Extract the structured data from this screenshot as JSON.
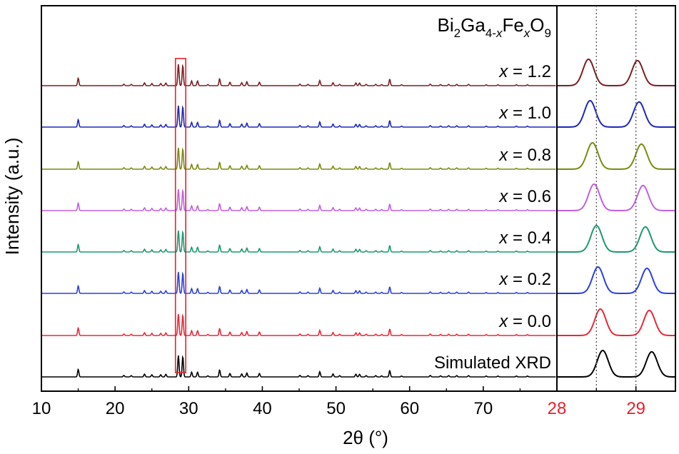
{
  "chart_data": {
    "type": "line",
    "title_parts": [
      "Bi",
      "2",
      "Ga",
      "4-",
      "x",
      "Fe",
      "x",
      "O",
      "9"
    ],
    "xlabel": "2θ (°)",
    "ylabel": "Intensity (a.u.)",
    "main_panel": {
      "xlim": [
        10,
        80
      ],
      "xticks": [
        "10",
        "20",
        "30",
        "40",
        "50",
        "60",
        "70",
        "80"
      ]
    },
    "inset_panel": {
      "xlim": [
        28,
        29.5
      ],
      "xticks": [
        "28",
        "29"
      ],
      "tick_color": "#e8202a",
      "dotted_reference_lines": [
        28.5,
        29.0
      ]
    },
    "highlight_box_range": [
      28.2,
      29.6
    ],
    "peaks": [
      {
        "x": 15.0,
        "h": 0.35
      },
      {
        "x": 21.2,
        "h": 0.07
      },
      {
        "x": 22.2,
        "h": 0.06
      },
      {
        "x": 24.0,
        "h": 0.13
      },
      {
        "x": 25.0,
        "h": 0.1
      },
      {
        "x": 26.2,
        "h": 0.1
      },
      {
        "x": 26.9,
        "h": 0.12
      },
      {
        "x": 28.6,
        "h": 1.0
      },
      {
        "x": 29.2,
        "h": 0.95
      },
      {
        "x": 30.4,
        "h": 0.22
      },
      {
        "x": 31.2,
        "h": 0.22
      },
      {
        "x": 32.6,
        "h": 0.05
      },
      {
        "x": 34.2,
        "h": 0.32
      },
      {
        "x": 35.6,
        "h": 0.16
      },
      {
        "x": 37.2,
        "h": 0.14
      },
      {
        "x": 37.9,
        "h": 0.18
      },
      {
        "x": 39.6,
        "h": 0.16
      },
      {
        "x": 45.1,
        "h": 0.07
      },
      {
        "x": 46.2,
        "h": 0.06
      },
      {
        "x": 47.8,
        "h": 0.24
      },
      {
        "x": 49.6,
        "h": 0.14
      },
      {
        "x": 50.5,
        "h": 0.06
      },
      {
        "x": 52.7,
        "h": 0.13
      },
      {
        "x": 53.2,
        "h": 0.12
      },
      {
        "x": 54.1,
        "h": 0.06
      },
      {
        "x": 55.4,
        "h": 0.06
      },
      {
        "x": 56.2,
        "h": 0.05
      },
      {
        "x": 57.3,
        "h": 0.3
      },
      {
        "x": 58.9,
        "h": 0.04
      },
      {
        "x": 62.8,
        "h": 0.07
      },
      {
        "x": 64.2,
        "h": 0.05
      },
      {
        "x": 65.3,
        "h": 0.06
      },
      {
        "x": 66.4,
        "h": 0.06
      },
      {
        "x": 68.0,
        "h": 0.06
      },
      {
        "x": 70.4,
        "h": 0.04
      },
      {
        "x": 72.0,
        "h": 0.04
      },
      {
        "x": 74.5,
        "h": 0.04
      },
      {
        "x": 76.0,
        "h": 0.04
      }
    ],
    "series": [
      {
        "label_prefix": "x",
        "label_value": " = 1.2",
        "color": "#7b1f22",
        "shift": -0.1,
        "baseline": 0
      },
      {
        "label_prefix": "x",
        "label_value": " = 1.0",
        "color": "#1f28b8",
        "shift": -0.08,
        "baseline": 1
      },
      {
        "label_prefix": "x",
        "label_value": " = 0.8",
        "color": "#7a8a10",
        "shift": -0.05,
        "baseline": 2
      },
      {
        "label_prefix": "x",
        "label_value": " = 0.6",
        "color": "#c060e0",
        "shift": -0.03,
        "baseline": 3
      },
      {
        "label_prefix": "x",
        "label_value": " = 0.4",
        "color": "#1a9a70",
        "shift": 0.0,
        "baseline": 4
      },
      {
        "label_prefix": "x",
        "label_value": " = 0.2",
        "color": "#2a40e0",
        "shift": 0.02,
        "baseline": 5
      },
      {
        "label_prefix": "x",
        "label_value": " = 0.0",
        "color": "#e82838",
        "shift": 0.05,
        "baseline": 6
      },
      {
        "label_prefix": "",
        "label_value": "Simulated XRD",
        "color": "#000000",
        "shift": 0.08,
        "baseline": 7
      }
    ]
  }
}
